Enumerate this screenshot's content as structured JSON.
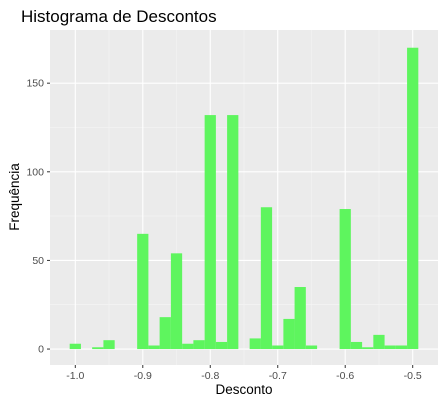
{
  "chart_data": {
    "type": "bar",
    "title": "Histograma de Descontos",
    "xlabel": "Desconto",
    "ylabel": "Frequência",
    "xlim": [
      -1.0375,
      -0.4625
    ],
    "ylim": [
      -9,
      180
    ],
    "x_ticks": [
      {
        "value": -1.0,
        "label": "-1.0"
      },
      {
        "value": -0.9,
        "label": "-0.9"
      },
      {
        "value": -0.8,
        "label": "-0.8"
      },
      {
        "value": -0.7,
        "label": "-0.7"
      },
      {
        "value": -0.6,
        "label": "-0.6"
      },
      {
        "value": -0.5,
        "label": "-0.5"
      }
    ],
    "y_ticks": [
      {
        "value": 0,
        "label": "0"
      },
      {
        "value": 50,
        "label": "50"
      },
      {
        "value": 100,
        "label": "100"
      },
      {
        "value": 150,
        "label": "150"
      }
    ],
    "bin_width": 0.01667,
    "bins": [
      {
        "x": -1.0,
        "count": 3
      },
      {
        "x": -0.9833,
        "count": 0
      },
      {
        "x": -0.9667,
        "count": 1
      },
      {
        "x": -0.95,
        "count": 5
      },
      {
        "x": -0.9333,
        "count": 0
      },
      {
        "x": -0.9167,
        "count": 0
      },
      {
        "x": -0.9,
        "count": 65
      },
      {
        "x": -0.8833,
        "count": 2
      },
      {
        "x": -0.8667,
        "count": 18
      },
      {
        "x": -0.85,
        "count": 54
      },
      {
        "x": -0.8333,
        "count": 3
      },
      {
        "x": -0.8167,
        "count": 5
      },
      {
        "x": -0.8,
        "count": 132
      },
      {
        "x": -0.7833,
        "count": 4
      },
      {
        "x": -0.7667,
        "count": 132
      },
      {
        "x": -0.75,
        "count": 0
      },
      {
        "x": -0.7333,
        "count": 6
      },
      {
        "x": -0.7167,
        "count": 80
      },
      {
        "x": -0.7,
        "count": 2
      },
      {
        "x": -0.6833,
        "count": 17
      },
      {
        "x": -0.6667,
        "count": 35
      },
      {
        "x": -0.65,
        "count": 2
      },
      {
        "x": -0.6333,
        "count": 0
      },
      {
        "x": -0.6167,
        "count": 0
      },
      {
        "x": -0.6,
        "count": 79
      },
      {
        "x": -0.5833,
        "count": 4
      },
      {
        "x": -0.5667,
        "count": 1
      },
      {
        "x": -0.55,
        "count": 8
      },
      {
        "x": -0.5333,
        "count": 2
      },
      {
        "x": -0.5167,
        "count": 2
      },
      {
        "x": -0.5,
        "count": 170
      }
    ],
    "grid": true,
    "legend": "none",
    "colors": {
      "bar_fill": "#5ef55e",
      "panel_background": "#ebebeb",
      "grid_major": "#ffffff",
      "grid_minor": "#f5f5f5"
    }
  }
}
